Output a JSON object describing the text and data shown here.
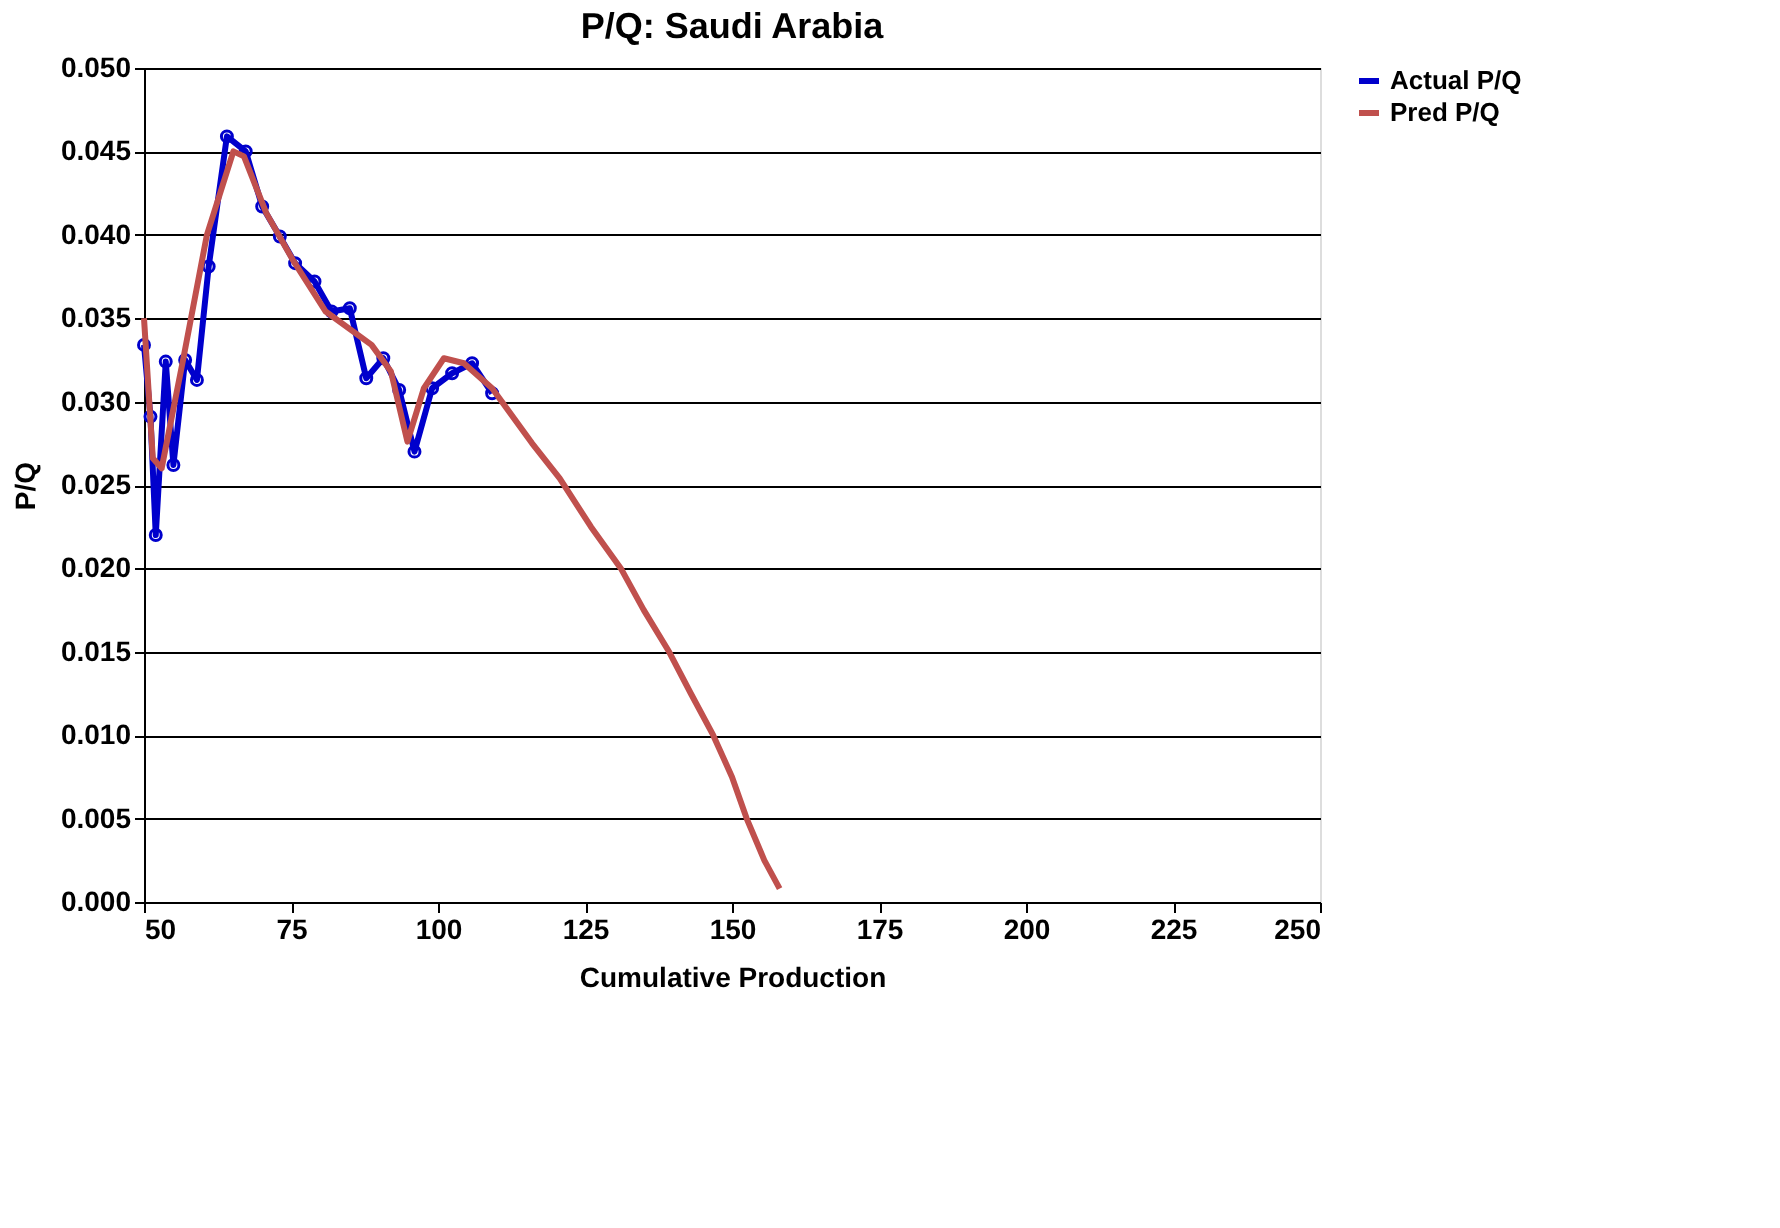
{
  "chart_data": {
    "type": "line",
    "title": "P/Q: Saudi Arabia",
    "xlabel": "Cumulative Production",
    "ylabel": "P/Q",
    "xlim": [
      50,
      250
    ],
    "xticks": [
      50,
      75,
      100,
      125,
      150,
      175,
      200,
      225,
      250
    ],
    "ylim": [
      0,
      0.05
    ],
    "yticks": [
      {
        "value": 0,
        "label": "0.000"
      },
      {
        "value": 0.005,
        "label": "0.005"
      },
      {
        "value": 0.01,
        "label": "0.010"
      },
      {
        "value": 0.015,
        "label": "0.015"
      },
      {
        "value": 0.02,
        "label": "0.020"
      },
      {
        "value": 0.025,
        "label": "0.025"
      },
      {
        "value": 0.03,
        "label": "0.030"
      },
      {
        "value": 0.035,
        "label": "0.035"
      },
      {
        "value": 0.04,
        "label": "0.040"
      },
      {
        "value": 0.045,
        "label": "0.045"
      },
      {
        "value": 0.05,
        "label": "0.050"
      }
    ],
    "grid": "y",
    "legend": "right",
    "series": [
      {
        "name": "Actual P/Q",
        "color": "#0000cc",
        "marker": "circle",
        "x": [
          50,
          51.1,
          52,
          53.7,
          55,
          57,
          59,
          61,
          64.1,
          67.3,
          70.1,
          73.1,
          75.7,
          79,
          81.9,
          85,
          87.8,
          90.7,
          93.4,
          96,
          99,
          102.4,
          105.8,
          109.2
        ],
        "values": [
          0.0334,
          0.0291,
          0.022,
          0.0324,
          0.0262,
          0.0325,
          0.0313,
          0.0381,
          0.0459,
          0.045,
          0.0417,
          0.0399,
          0.0383,
          0.0372,
          0.0354,
          0.0356,
          0.0314,
          0.0326,
          0.0307,
          0.027,
          0.0308,
          0.0317,
          0.0323,
          0.0305
        ]
      },
      {
        "name": "Pred P/Q",
        "color": "#c0504d",
        "marker": "none",
        "x": [
          50,
          51.5,
          53,
          56.7,
          60.7,
          65.2,
          67,
          70.8,
          75.3,
          80.9,
          88.7,
          92,
          94.8,
          97.6,
          101,
          104.4,
          109.2,
          116,
          120.7,
          126,
          131.1,
          135,
          139.3,
          143,
          146.8,
          150,
          152.5,
          155.5,
          158.1
        ],
        "values": [
          0.035,
          0.0266,
          0.026,
          0.0326,
          0.04,
          0.045,
          0.0447,
          0.0413,
          0.0385,
          0.0354,
          0.0334,
          0.0318,
          0.0276,
          0.0308,
          0.0326,
          0.0323,
          0.0308,
          0.0275,
          0.0254,
          0.0225,
          0.02,
          0.0175,
          0.015,
          0.0125,
          0.01,
          0.0075,
          0.005,
          0.0025,
          0.0008
        ]
      }
    ]
  }
}
